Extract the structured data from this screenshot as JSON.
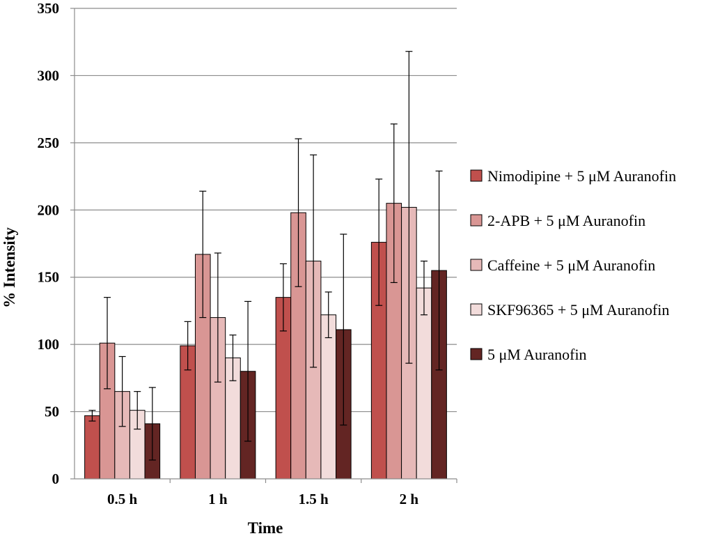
{
  "chart_data": {
    "type": "bar",
    "title": "",
    "xlabel": "Time",
    "ylabel": "% Intensity",
    "ylim": [
      0,
      350
    ],
    "yticks": [
      0,
      50,
      100,
      150,
      200,
      250,
      300,
      350
    ],
    "grid": true,
    "legend_position": "right",
    "categories": [
      "0.5 h",
      "1 h",
      "1.5 h",
      "2 h"
    ],
    "series": [
      {
        "name": "Nimodipine + 5 μM Auranofin",
        "color": "#c0504d",
        "values": [
          47,
          99,
          135,
          176
        ],
        "errors": [
          4,
          18,
          25,
          47
        ]
      },
      {
        "name": "2-APB +  5 μM Auranofin",
        "color": "#d99694",
        "values": [
          101,
          167,
          198,
          205
        ],
        "errors": [
          34,
          47,
          55,
          59
        ]
      },
      {
        "name": "Caffeine +  5 μM Auranofin",
        "color": "#e6b9b8",
        "values": [
          65,
          120,
          162,
          202
        ],
        "errors": [
          26,
          48,
          79,
          116
        ]
      },
      {
        "name": "SKF96365 +  5 μM Auranofin",
        "color": "#f2dcdb",
        "values": [
          51,
          90,
          122,
          142
        ],
        "errors": [
          14,
          17,
          17,
          20
        ]
      },
      {
        "name": "5 μM Auranofin",
        "color": "#632523",
        "values": [
          41,
          80,
          111,
          155
        ],
        "errors": [
          27,
          52,
          71,
          74
        ]
      }
    ]
  }
}
